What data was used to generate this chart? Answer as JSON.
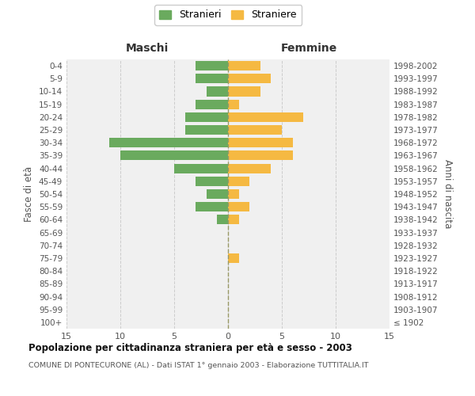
{
  "age_groups": [
    "100+",
    "95-99",
    "90-94",
    "85-89",
    "80-84",
    "75-79",
    "70-74",
    "65-69",
    "60-64",
    "55-59",
    "50-54",
    "45-49",
    "40-44",
    "35-39",
    "30-34",
    "25-29",
    "20-24",
    "15-19",
    "10-14",
    "5-9",
    "0-4"
  ],
  "birth_years": [
    "≤ 1902",
    "1903-1907",
    "1908-1912",
    "1913-1917",
    "1918-1922",
    "1923-1927",
    "1928-1932",
    "1933-1937",
    "1938-1942",
    "1943-1947",
    "1948-1952",
    "1953-1957",
    "1958-1962",
    "1963-1967",
    "1968-1972",
    "1973-1977",
    "1978-1982",
    "1983-1987",
    "1988-1992",
    "1993-1997",
    "1998-2002"
  ],
  "maschi": [
    0,
    0,
    0,
    0,
    0,
    0,
    0,
    0,
    1,
    3,
    2,
    3,
    5,
    10,
    11,
    4,
    4,
    3,
    2,
    3,
    3
  ],
  "femmine": [
    0,
    0,
    0,
    0,
    0,
    1,
    0,
    0,
    1,
    2,
    1,
    2,
    4,
    6,
    6,
    5,
    7,
    1,
    3,
    4,
    3
  ],
  "color_maschi": "#6aaa5e",
  "color_femmine": "#f5b942",
  "title_main": "Popolazione per cittadinanza straniera per età e sesso - 2003",
  "title_sub": "COMUNE DI PONTECURONE (AL) - Dati ISTAT 1° gennaio 2003 - Elaborazione TUTTITALIA.IT",
  "xlabel_left": "Maschi",
  "xlabel_right": "Femmine",
  "ylabel_left": "Fasce di età",
  "ylabel_right": "Anni di nascita",
  "legend_maschi": "Stranieri",
  "legend_femmine": "Straniere",
  "xlim": 15,
  "bg_color": "#f0f0f0",
  "grid_color": "#cccccc"
}
